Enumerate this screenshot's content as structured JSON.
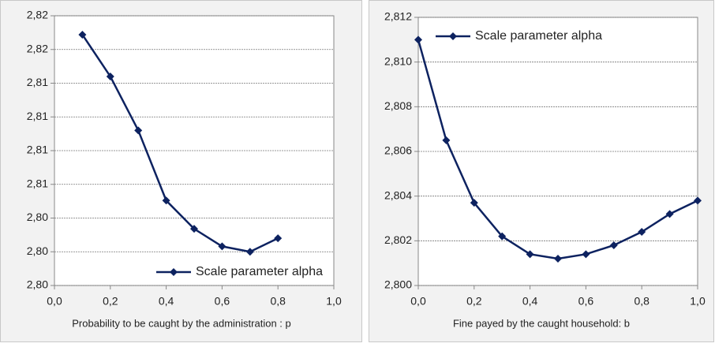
{
  "chart_data": [
    {
      "type": "line",
      "x_label": "Probability to be caught by the administration : p",
      "x": [
        0.1,
        0.2,
        0.3,
        0.4,
        0.5,
        0.6,
        0.7,
        0.8
      ],
      "series": [
        {
          "name": "Scale parameter alpha",
          "color": "#0d2260",
          "values": [
            2.8186,
            2.8155,
            2.8115,
            2.8063,
            2.8042,
            2.8029,
            2.8025,
            2.8035
          ]
        }
      ],
      "xlim": [
        0,
        1
      ],
      "xticks": [
        {
          "value": 0,
          "label": "0,0"
        },
        {
          "value": 0.2,
          "label": "0,2"
        },
        {
          "value": 0.4,
          "label": "0,4"
        },
        {
          "value": 0.6,
          "label": "0,6"
        },
        {
          "value": 0.8,
          "label": "0,8"
        },
        {
          "value": 1,
          "label": "1,0"
        }
      ],
      "ylim": [
        2.8,
        2.82
      ],
      "yticks": [
        {
          "value": 2.8,
          "label": "2,80"
        },
        {
          "value": 2.8025,
          "label": "2,80"
        },
        {
          "value": 2.805,
          "label": "2,80"
        },
        {
          "value": 2.8075,
          "label": "2,81"
        },
        {
          "value": 2.81,
          "label": "2,81"
        },
        {
          "value": 2.8125,
          "label": "2,81"
        },
        {
          "value": 2.815,
          "label": "2,81"
        },
        {
          "value": 2.8175,
          "label": "2,82"
        },
        {
          "value": 2.82,
          "label": "2,82"
        }
      ],
      "grid": true,
      "legend": "lower right"
    },
    {
      "type": "line",
      "x_label": "Fine payed by the caught household: b",
      "x": [
        0,
        0.1,
        0.2,
        0.3,
        0.4,
        0.5,
        0.6,
        0.7,
        0.8,
        0.9,
        1
      ],
      "series": [
        {
          "name": "Scale parameter alpha",
          "color": "#0d2260",
          "values": [
            2.811,
            2.8065,
            2.8037,
            2.8022,
            2.8014,
            2.8012,
            2.8014,
            2.8018,
            2.8024,
            2.8032,
            2.8038
          ]
        }
      ],
      "xlim": [
        0,
        1
      ],
      "xticks": [
        {
          "value": 0,
          "label": "0,0"
        },
        {
          "value": 0.2,
          "label": "0,2"
        },
        {
          "value": 0.4,
          "label": "0,4"
        },
        {
          "value": 0.6,
          "label": "0,6"
        },
        {
          "value": 0.8,
          "label": "0,8"
        },
        {
          "value": 1,
          "label": "1,0"
        }
      ],
      "ylim": [
        2.8,
        2.812
      ],
      "yticks": [
        {
          "value": 2.8,
          "label": "2,800"
        },
        {
          "value": 2.802,
          "label": "2,802"
        },
        {
          "value": 2.804,
          "label": "2,804"
        },
        {
          "value": 2.806,
          "label": "2,806"
        },
        {
          "value": 2.808,
          "label": "2,808"
        },
        {
          "value": 2.81,
          "label": "2,810"
        },
        {
          "value": 2.812,
          "label": "2,812"
        }
      ],
      "grid": true,
      "legend": "upper left"
    }
  ]
}
